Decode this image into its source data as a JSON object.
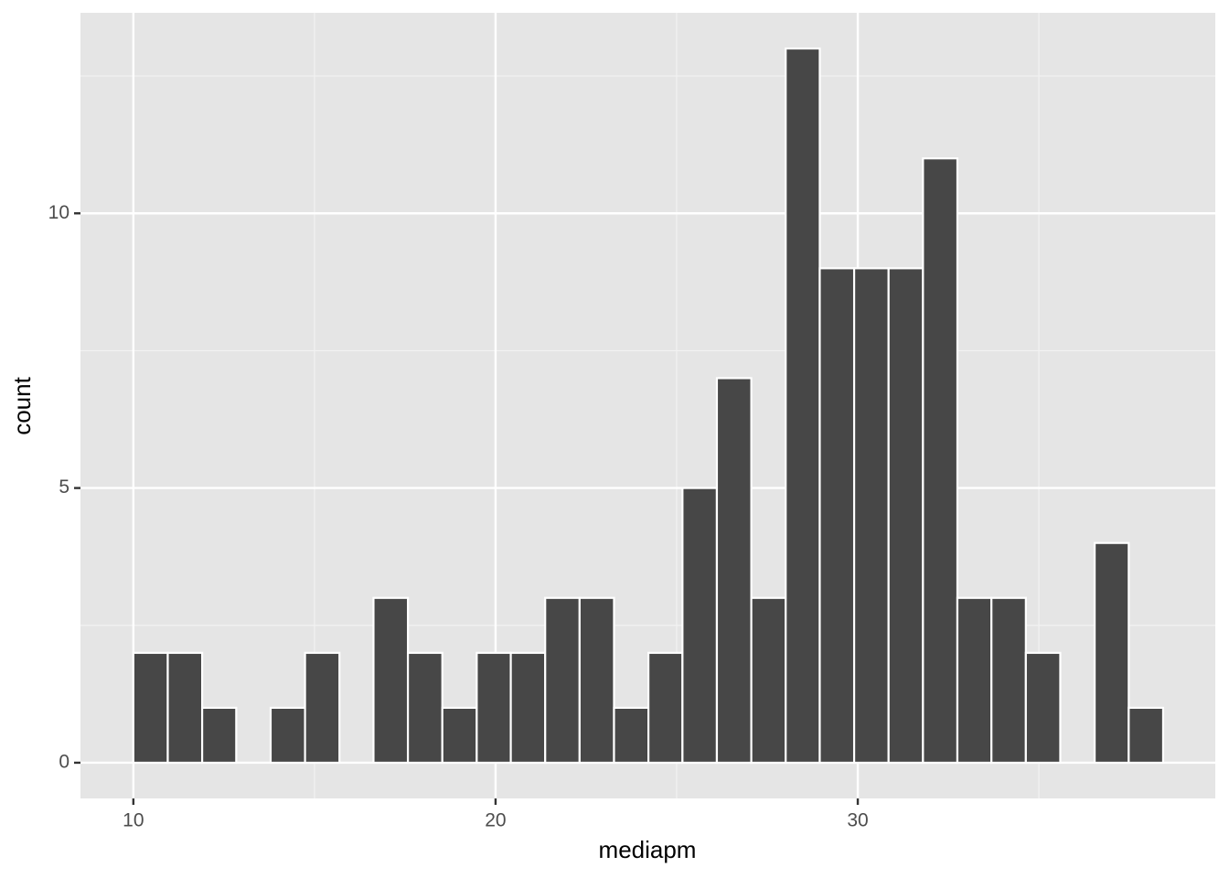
{
  "chart_data": {
    "type": "histogram",
    "x_label": "mediapm",
    "y_label": "count",
    "bins": [
      10,
      10.95,
      11.9,
      12.84,
      13.79,
      14.74,
      15.69,
      16.63,
      17.58,
      18.53,
      19.48,
      20.42,
      21.37,
      22.32,
      23.27,
      24.22,
      25.16,
      26.11,
      27.06,
      28.01,
      28.95,
      29.9,
      30.85,
      31.8,
      32.75,
      33.69,
      34.64,
      35.59,
      36.54,
      37.48,
      38.43
    ],
    "values": [
      2,
      2,
      1,
      0,
      1,
      2,
      0,
      3,
      2,
      1,
      2,
      2,
      3,
      3,
      1,
      2,
      5,
      7,
      3,
      13,
      9,
      9,
      9,
      11,
      3,
      3,
      2,
      0,
      4,
      1
    ],
    "color": "#474747",
    "xlim": [
      8.54,
      39.87
    ],
    "xticks": [
      10,
      20,
      30
    ],
    "ylim": [
      -0.65,
      13.65
    ],
    "yticks": [
      0,
      5,
      10
    ],
    "grid": true
  }
}
